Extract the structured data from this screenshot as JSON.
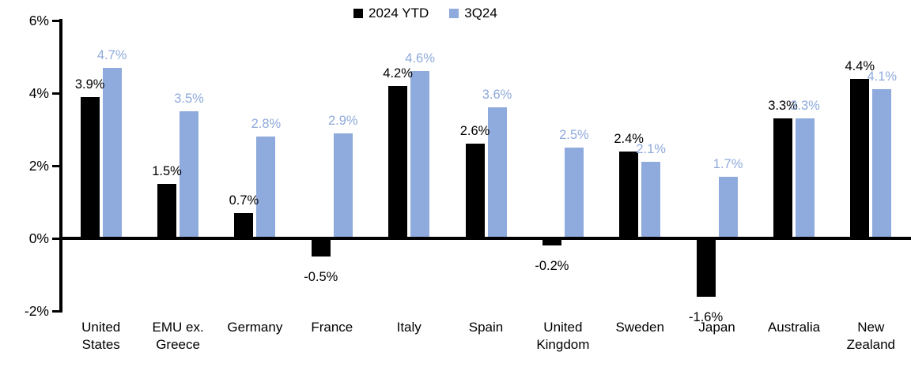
{
  "chart_data": {
    "type": "bar",
    "title": "",
    "categories": [
      "United States",
      "EMU ex. Greece",
      "Germany",
      "France",
      "Italy",
      "Spain",
      "United Kingdom",
      "Sweden",
      "Japan",
      "Australia",
      "New Zealand"
    ],
    "series": [
      {
        "name": "2024 YTD",
        "color": "#000000",
        "label_color": "#000000",
        "values": [
          3.9,
          1.5,
          0.7,
          -0.5,
          4.2,
          2.6,
          -0.2,
          2.4,
          -1.6,
          3.3,
          4.4
        ]
      },
      {
        "name": "3Q24",
        "color": "#8FAADC",
        "label_color": "#8FAADC",
        "values": [
          4.7,
          3.5,
          2.8,
          2.9,
          4.6,
          3.6,
          2.5,
          2.1,
          1.7,
          3.3,
          4.1
        ]
      }
    ],
    "xlabel": "",
    "ylabel": "",
    "ylim": [
      -2,
      6
    ],
    "yticks": [
      6,
      4,
      2,
      0,
      -2
    ],
    "ytick_labels": [
      "6%",
      "4%",
      "2%",
      "0%",
      "-2%"
    ],
    "value_suffix": "%",
    "grid": false,
    "legend_position": "top-center",
    "axis_color": "#000000",
    "background_color": "#FFFFFF"
  }
}
